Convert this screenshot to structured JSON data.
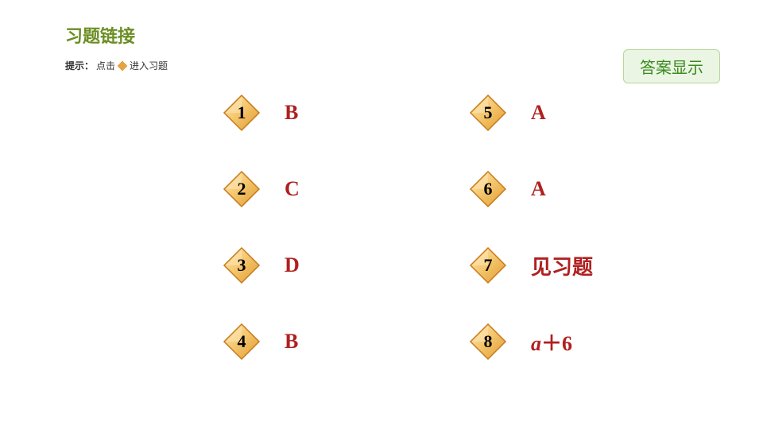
{
  "title": "习题链接",
  "hint": {
    "prefix": "提示：",
    "click": "点击",
    "suffix": "进入习题"
  },
  "answer_button": "答案显示",
  "diamond_style": {
    "fill_light": "#f5c871",
    "fill_dark": "#e09a2e",
    "border": "#c77a1a",
    "highlight": "#ffe8b8"
  },
  "colors": {
    "title": "#6b8e23",
    "answer_text": "#b02020",
    "btn_bg": "#eaf5e4",
    "btn_border": "#b8d89a",
    "btn_text": "#3a8a1e"
  },
  "left_column": [
    {
      "num": "1",
      "answer": "B"
    },
    {
      "num": "2",
      "answer": "C"
    },
    {
      "num": "3",
      "answer": "D"
    },
    {
      "num": "4",
      "answer": "B"
    }
  ],
  "right_column": [
    {
      "num": "5",
      "answer": "A"
    },
    {
      "num": "6",
      "answer": "A"
    },
    {
      "num": "7",
      "answer": "见习题"
    },
    {
      "num": "8",
      "answer_html": "<span class=\"italic\">a</span>＋6"
    }
  ]
}
